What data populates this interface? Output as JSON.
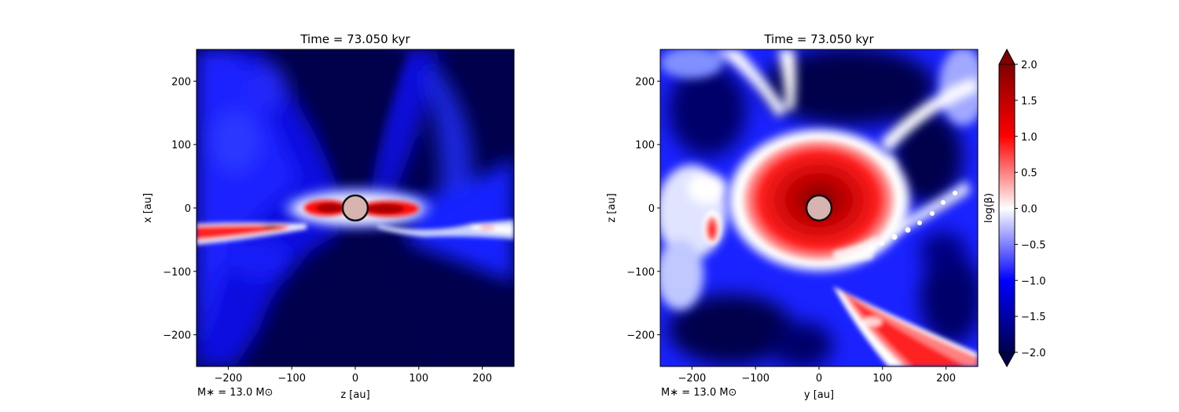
{
  "chart_data": [
    {
      "type": "heatmap",
      "title": "Time = 73.050 kyr",
      "xlabel": "z [au]",
      "ylabel": "x [au]",
      "xlim": [
        -250,
        250
      ],
      "ylim": [
        -250,
        250
      ],
      "xticks": [
        -200,
        -100,
        0,
        100,
        200
      ],
      "yticks": [
        -200,
        -100,
        0,
        100,
        200
      ],
      "xtick_labels": [
        "−200",
        "−100",
        "0",
        "100",
        "200"
      ],
      "ytick_labels": [
        "−200",
        "−100",
        "0",
        "100",
        "200"
      ],
      "annotation": "M$_*$ = 13.0 M$_\\odot$",
      "annotation_text": "M∗ = 13.0 M⊙",
      "star": {
        "x": 0,
        "y": 0,
        "radius_au": 20,
        "fill": "#d8b4b0"
      },
      "description_features": {
        "background_level": -2.0,
        "disk_red_lobes": [
          {
            "x_range": [
              -75,
              -20
            ],
            "y": 0,
            "level": 1.5
          },
          {
            "x_range": [
              20,
              95
            ],
            "y": 0,
            "level": 1.5
          }
        ],
        "left_red_filament": {
          "x_range": [
            -250,
            -80
          ],
          "y_center": -30,
          "level": 0.6
        }
      },
      "grid": false
    },
    {
      "type": "heatmap",
      "title": "Time = 73.050 kyr",
      "xlabel": "y [au]",
      "ylabel": "z [au]",
      "xlim": [
        -250,
        250
      ],
      "ylim": [
        -250,
        250
      ],
      "xticks": [
        -200,
        -100,
        0,
        100,
        200
      ],
      "yticks": [
        -200,
        -100,
        0,
        100,
        200
      ],
      "xtick_labels": [
        "−200",
        "−100",
        "0",
        "100",
        "200"
      ],
      "ytick_labels": [
        "−200",
        "−100",
        "0",
        "100",
        "200"
      ],
      "annotation": "M$_*$ = 13.0 M$_\\odot$",
      "annotation_text": "M∗ = 13.0 M⊙",
      "star": {
        "x": 0,
        "y": 0,
        "radius_au": 20,
        "fill": "#d8b4b0"
      },
      "description_features": {
        "central_red_disk": {
          "radius_au": 100,
          "level": 1.6
        },
        "lower_right_red_streak": {
          "from": [
            40,
            -120
          ],
          "to": [
            220,
            -240
          ],
          "level": 1.2
        }
      },
      "grid": false
    }
  ],
  "colorbar": {
    "label": "log(β)",
    "colormap": "seismic",
    "vmin": -2.0,
    "vmax": 2.0,
    "extend": "both",
    "ticks": [
      -2.0,
      -1.5,
      -1.0,
      -0.5,
      0.0,
      0.5,
      1.0,
      1.5,
      2.0
    ],
    "tick_labels": [
      "−2.0",
      "−1.5",
      "−1.0",
      "−0.5",
      "0.0",
      "0.5",
      "1.0",
      "1.5",
      "2.0"
    ],
    "levels": 40
  },
  "colors": {
    "dark_navy": "#00004c",
    "blue": "#0000ff",
    "white": "#ffffff",
    "red": "#ff0000",
    "dark_red": "#800000"
  }
}
